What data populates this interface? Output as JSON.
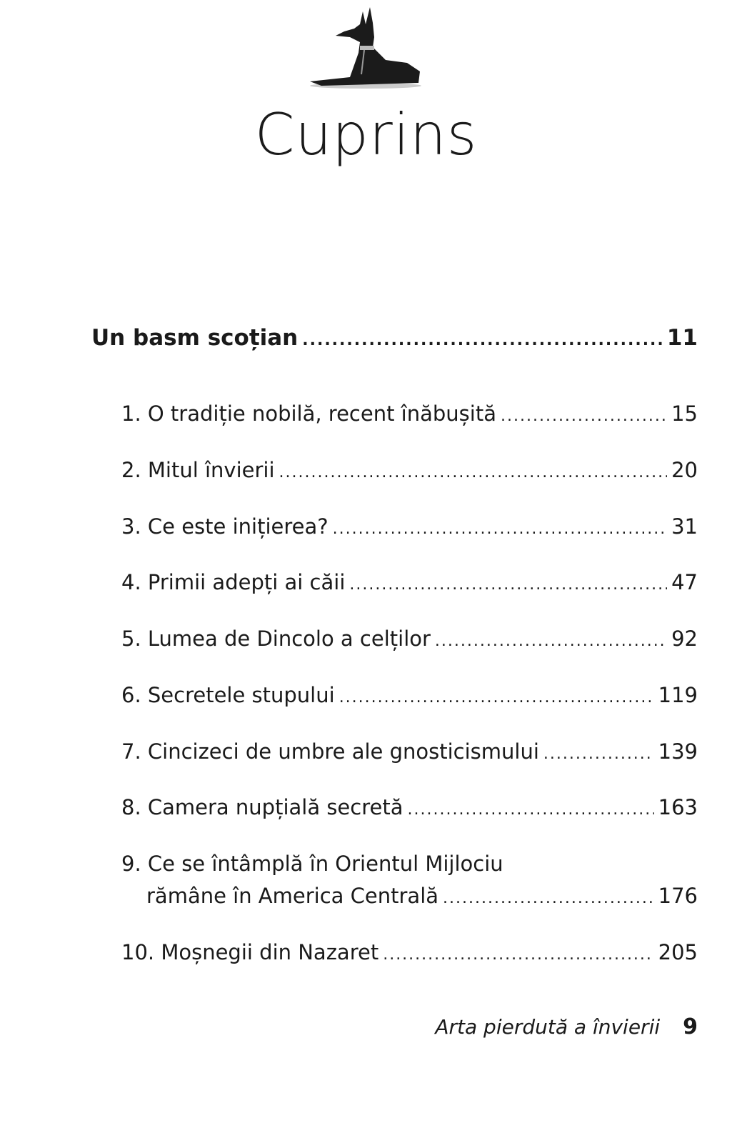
{
  "logo": {
    "icon": "anubis-jackal-icon"
  },
  "title": "Cuprins",
  "toc": {
    "heading": {
      "label": "Un basm scoțian",
      "page": "11"
    },
    "items": [
      {
        "label": "1. O tradiție nobilă, recent înăbușită",
        "page": "15"
      },
      {
        "label": "2. Mitul învierii",
        "page": "20"
      },
      {
        "label": "3. Ce este inițierea?",
        "page": "31"
      },
      {
        "label": "4. Primii adepți ai căii",
        "page": "47"
      },
      {
        "label": "5. Lumea de Dincolo a celților",
        "page": "92"
      },
      {
        "label": "6. Secretele stupului",
        "page": "119"
      },
      {
        "label": "7. Cincizeci de umbre ale gnosticismului",
        "page": "139"
      },
      {
        "label": "8. Camera nupțială secretă",
        "page": "163"
      },
      {
        "label_line1": "9. Ce se întâmplă în Orientul Mijlociu",
        "label_line2": "rămâne în America Centrală",
        "page": "176"
      },
      {
        "label": "10. Moșnegii din Nazaret",
        "page": "205"
      }
    ]
  },
  "footer": {
    "book_title": "Arta pierdută a învierii",
    "page_number": "9"
  }
}
